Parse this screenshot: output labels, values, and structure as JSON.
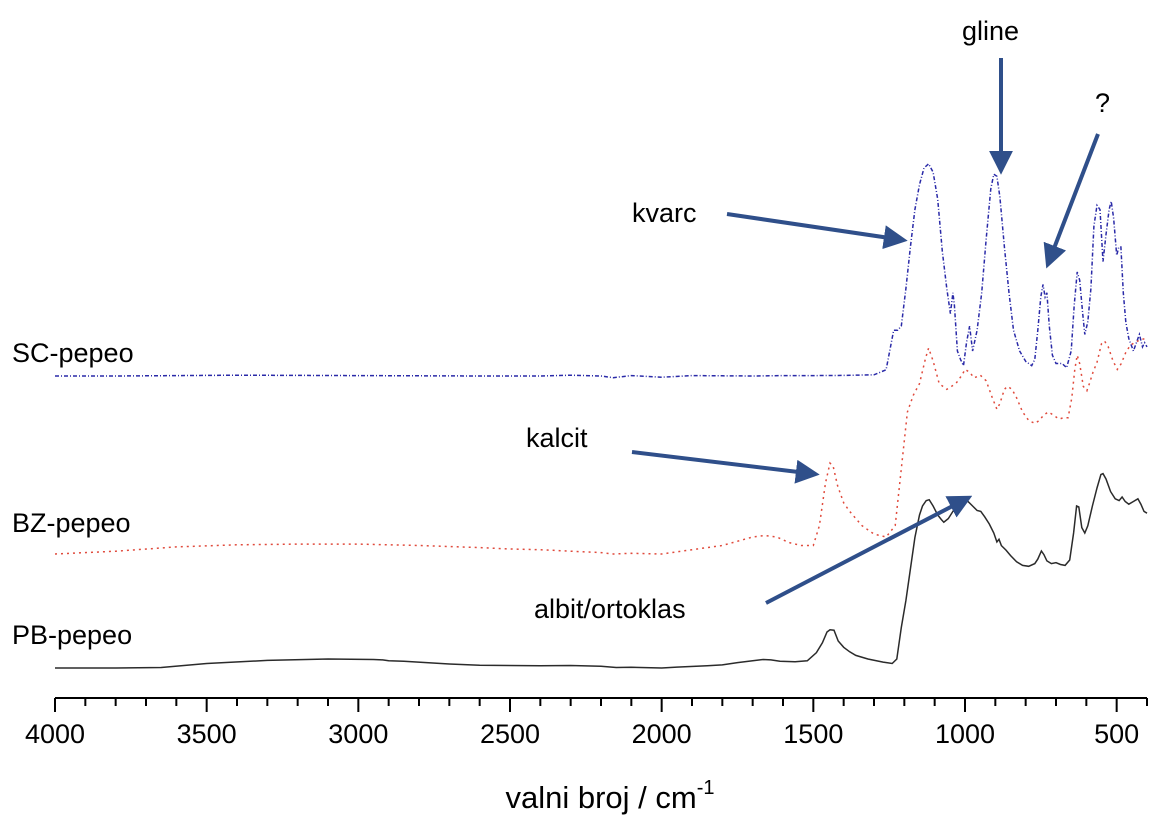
{
  "chart_data": {
    "type": "line",
    "title": "",
    "xlabel": "valni broj / cm",
    "xlabel_superscript": "-1",
    "ylabel": "",
    "xlim": [
      4000,
      400
    ],
    "x_reversed": true,
    "y_axis_shown": false,
    "grid": false,
    "xticks": [
      4000,
      3500,
      3000,
      2500,
      2000,
      1500,
      1000,
      500
    ],
    "series": [
      {
        "name": "SC-pepeo",
        "color": "#2a2aa8",
        "dash": "dash-dot",
        "points": [
          [
            4000,
            0.0
          ],
          [
            3800,
            0.0
          ],
          [
            3600,
            0.002
          ],
          [
            3400,
            0.004
          ],
          [
            3200,
            0.003
          ],
          [
            3000,
            0.002
          ],
          [
            2800,
            0.001
          ],
          [
            2600,
            0.0
          ],
          [
            2400,
            0.0
          ],
          [
            2300,
            0.004
          ],
          [
            2200,
            0.0
          ],
          [
            2160,
            -0.008
          ],
          [
            2100,
            0.002
          ],
          [
            2000,
            -0.006
          ],
          [
            1900,
            0.002
          ],
          [
            1800,
            0.001
          ],
          [
            1700,
            0.0
          ],
          [
            1600,
            0.002
          ],
          [
            1500,
            0.002
          ],
          [
            1400,
            0.003
          ],
          [
            1300,
            0.006
          ],
          [
            1260,
            0.03
          ],
          [
            1235,
            0.22
          ],
          [
            1222,
            0.22
          ],
          [
            1210,
            0.24
          ],
          [
            1195,
            0.42
          ],
          [
            1180,
            0.62
          ],
          [
            1165,
            0.8
          ],
          [
            1150,
            0.92
          ],
          [
            1135,
            1.0
          ],
          [
            1120,
            1.02
          ],
          [
            1105,
            0.98
          ],
          [
            1090,
            0.85
          ],
          [
            1075,
            0.6
          ],
          [
            1060,
            0.42
          ],
          [
            1048,
            0.3
          ],
          [
            1040,
            0.4
          ],
          [
            1035,
            0.34
          ],
          [
            1025,
            0.12
          ],
          [
            1015,
            0.08
          ],
          [
            1005,
            0.05
          ],
          [
            995,
            0.16
          ],
          [
            985,
            0.24
          ],
          [
            975,
            0.12
          ],
          [
            960,
            0.22
          ],
          [
            945,
            0.4
          ],
          [
            930,
            0.66
          ],
          [
            915,
            0.9
          ],
          [
            905,
            0.97
          ],
          [
            895,
            0.96
          ],
          [
            885,
            0.86
          ],
          [
            870,
            0.62
          ],
          [
            855,
            0.4
          ],
          [
            840,
            0.22
          ],
          [
            820,
            0.12
          ],
          [
            800,
            0.07
          ],
          [
            780,
            0.05
          ],
          [
            770,
            0.08
          ],
          [
            760,
            0.22
          ],
          [
            750,
            0.38
          ],
          [
            743,
            0.44
          ],
          [
            736,
            0.38
          ],
          [
            730,
            0.4
          ],
          [
            722,
            0.24
          ],
          [
            712,
            0.1
          ],
          [
            700,
            0.06
          ],
          [
            680,
            0.06
          ],
          [
            665,
            0.04
          ],
          [
            650,
            0.12
          ],
          [
            640,
            0.34
          ],
          [
            630,
            0.5
          ],
          [
            622,
            0.46
          ],
          [
            612,
            0.3
          ],
          [
            605,
            0.2
          ],
          [
            595,
            0.26
          ],
          [
            585,
            0.42
          ],
          [
            575,
            0.72
          ],
          [
            565,
            0.82
          ],
          [
            555,
            0.8
          ],
          [
            545,
            0.55
          ],
          [
            535,
            0.68
          ],
          [
            525,
            0.8
          ],
          [
            518,
            0.84
          ],
          [
            510,
            0.76
          ],
          [
            500,
            0.58
          ],
          [
            493,
            0.62
          ],
          [
            486,
            0.62
          ],
          [
            478,
            0.4
          ],
          [
            470,
            0.26
          ],
          [
            460,
            0.18
          ],
          [
            445,
            0.12
          ],
          [
            435,
            0.16
          ],
          [
            425,
            0.2
          ],
          [
            415,
            0.14
          ],
          [
            408,
            0.16
          ],
          [
            400,
            0.14
          ]
        ]
      },
      {
        "name": "BZ-pepeo",
        "color": "#e04a3c",
        "dash": "dot",
        "points": [
          [
            4000,
            0.0
          ],
          [
            3800,
            0.02
          ],
          [
            3600,
            0.05
          ],
          [
            3400,
            0.065
          ],
          [
            3200,
            0.07
          ],
          [
            3000,
            0.07
          ],
          [
            2800,
            0.06
          ],
          [
            2600,
            0.045
          ],
          [
            2500,
            0.035
          ],
          [
            2400,
            0.03
          ],
          [
            2300,
            0.02
          ],
          [
            2200,
            0.01
          ],
          [
            2160,
            0.0
          ],
          [
            2100,
            0.005
          ],
          [
            2000,
            0.0
          ],
          [
            1900,
            0.03
          ],
          [
            1800,
            0.06
          ],
          [
            1700,
            0.12
          ],
          [
            1660,
            0.13
          ],
          [
            1620,
            0.12
          ],
          [
            1580,
            0.08
          ],
          [
            1540,
            0.06
          ],
          [
            1500,
            0.06
          ],
          [
            1480,
            0.2
          ],
          [
            1460,
            0.5
          ],
          [
            1445,
            0.64
          ],
          [
            1435,
            0.62
          ],
          [
            1420,
            0.48
          ],
          [
            1400,
            0.36
          ],
          [
            1380,
            0.3
          ],
          [
            1340,
            0.2
          ],
          [
            1300,
            0.14
          ],
          [
            1260,
            0.12
          ],
          [
            1230,
            0.2
          ],
          [
            1210,
            0.6
          ],
          [
            1190,
            1.0
          ],
          [
            1170,
            1.12
          ],
          [
            1150,
            1.2
          ],
          [
            1130,
            1.38
          ],
          [
            1120,
            1.45
          ],
          [
            1105,
            1.36
          ],
          [
            1085,
            1.2
          ],
          [
            1060,
            1.16
          ],
          [
            1030,
            1.2
          ],
          [
            1010,
            1.26
          ],
          [
            1000,
            1.3
          ],
          [
            985,
            1.28
          ],
          [
            970,
            1.24
          ],
          [
            950,
            1.26
          ],
          [
            930,
            1.22
          ],
          [
            910,
            1.1
          ],
          [
            895,
            1.02
          ],
          [
            885,
            1.06
          ],
          [
            870,
            1.16
          ],
          [
            860,
            1.18
          ],
          [
            845,
            1.16
          ],
          [
            830,
            1.1
          ],
          [
            810,
            1.0
          ],
          [
            790,
            0.94
          ],
          [
            770,
            0.92
          ],
          [
            755,
            0.94
          ],
          [
            740,
            0.98
          ],
          [
            725,
            1.0
          ],
          [
            710,
            0.98
          ],
          [
            690,
            0.95
          ],
          [
            675,
            0.96
          ],
          [
            660,
            0.96
          ],
          [
            648,
            1.1
          ],
          [
            638,
            1.3
          ],
          [
            630,
            1.4
          ],
          [
            622,
            1.34
          ],
          [
            610,
            1.18
          ],
          [
            598,
            1.15
          ],
          [
            590,
            1.2
          ],
          [
            578,
            1.28
          ],
          [
            565,
            1.35
          ],
          [
            550,
            1.48
          ],
          [
            540,
            1.5
          ],
          [
            528,
            1.46
          ],
          [
            512,
            1.36
          ],
          [
            498,
            1.3
          ],
          [
            485,
            1.34
          ],
          [
            470,
            1.42
          ],
          [
            455,
            1.47
          ],
          [
            440,
            1.49
          ],
          [
            420,
            1.51
          ],
          [
            400,
            1.52
          ]
        ]
      },
      {
        "name": "PB-pepeo",
        "color": "#2b2b2b",
        "dash": "solid",
        "points": [
          [
            4000,
            0.0
          ],
          [
            3800,
            0.0
          ],
          [
            3650,
            0.01
          ],
          [
            3500,
            0.1
          ],
          [
            3300,
            0.17
          ],
          [
            3100,
            0.2
          ],
          [
            2950,
            0.19
          ],
          [
            2920,
            0.18
          ],
          [
            2900,
            0.16
          ],
          [
            2850,
            0.15
          ],
          [
            2700,
            0.09
          ],
          [
            2600,
            0.06
          ],
          [
            2400,
            0.05
          ],
          [
            2300,
            0.055
          ],
          [
            2200,
            0.04
          ],
          [
            2150,
            0.01
          ],
          [
            2100,
            0.015
          ],
          [
            2000,
            0.0
          ],
          [
            1950,
            0.02
          ],
          [
            1850,
            0.05
          ],
          [
            1800,
            0.07
          ],
          [
            1750,
            0.12
          ],
          [
            1700,
            0.16
          ],
          [
            1665,
            0.19
          ],
          [
            1640,
            0.18
          ],
          [
            1610,
            0.15
          ],
          [
            1560,
            0.14
          ],
          [
            1520,
            0.16
          ],
          [
            1490,
            0.34
          ],
          [
            1470,
            0.56
          ],
          [
            1455,
            0.8
          ],
          [
            1445,
            0.85
          ],
          [
            1432,
            0.84
          ],
          [
            1418,
            0.6
          ],
          [
            1400,
            0.46
          ],
          [
            1380,
            0.36
          ],
          [
            1360,
            0.28
          ],
          [
            1320,
            0.2
          ],
          [
            1270,
            0.13
          ],
          [
            1240,
            0.1
          ],
          [
            1225,
            0.2
          ],
          [
            1210,
            0.9
          ],
          [
            1195,
            1.5
          ],
          [
            1180,
            2.2
          ],
          [
            1165,
            2.9
          ],
          [
            1150,
            3.4
          ],
          [
            1140,
            3.6
          ],
          [
            1128,
            3.72
          ],
          [
            1118,
            3.74
          ],
          [
            1105,
            3.6
          ],
          [
            1090,
            3.4
          ],
          [
            1078,
            3.3
          ],
          [
            1070,
            3.24
          ],
          [
            1055,
            3.32
          ],
          [
            1040,
            3.48
          ],
          [
            1025,
            3.6
          ],
          [
            1010,
            3.7
          ],
          [
            1000,
            3.74
          ],
          [
            990,
            3.7
          ],
          [
            975,
            3.6
          ],
          [
            960,
            3.5
          ],
          [
            948,
            3.48
          ],
          [
            935,
            3.36
          ],
          [
            920,
            3.2
          ],
          [
            905,
            3.0
          ],
          [
            895,
            2.8
          ],
          [
            888,
            2.86
          ],
          [
            880,
            2.72
          ],
          [
            865,
            2.62
          ],
          [
            850,
            2.5
          ],
          [
            830,
            2.36
          ],
          [
            810,
            2.28
          ],
          [
            790,
            2.26
          ],
          [
            770,
            2.32
          ],
          [
            760,
            2.42
          ],
          [
            748,
            2.6
          ],
          [
            740,
            2.52
          ],
          [
            730,
            2.38
          ],
          [
            715,
            2.32
          ],
          [
            700,
            2.34
          ],
          [
            685,
            2.3
          ],
          [
            670,
            2.28
          ],
          [
            655,
            2.4
          ],
          [
            642,
            3.0
          ],
          [
            632,
            3.6
          ],
          [
            625,
            3.58
          ],
          [
            615,
            3.12
          ],
          [
            605,
            3.0
          ],
          [
            595,
            3.16
          ],
          [
            580,
            3.6
          ],
          [
            565,
            4.0
          ],
          [
            552,
            4.3
          ],
          [
            545,
            4.32
          ],
          [
            535,
            4.2
          ],
          [
            520,
            3.92
          ],
          [
            505,
            3.76
          ],
          [
            492,
            3.72
          ],
          [
            482,
            3.8
          ],
          [
            472,
            3.7
          ],
          [
            460,
            3.64
          ],
          [
            445,
            3.7
          ],
          [
            430,
            3.76
          ],
          [
            420,
            3.64
          ],
          [
            410,
            3.48
          ],
          [
            400,
            3.44
          ]
        ]
      }
    ],
    "annotations": [
      {
        "text": "gline",
        "target_x": 900
      },
      {
        "text": "?",
        "target_x": 735
      },
      {
        "text": "kvarc",
        "target_x": 1170
      },
      {
        "text": "kalcit",
        "target_x": 1480
      },
      {
        "text": "albit/ortoklas",
        "target_x": 1000
      }
    ]
  }
}
